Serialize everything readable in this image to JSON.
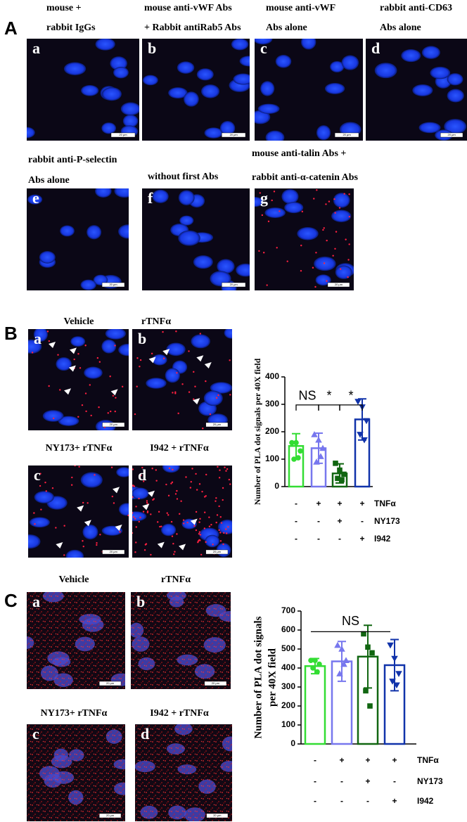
{
  "scale_bar": "20 μm",
  "panel_a": {
    "label": "A",
    "images": [
      {
        "letter": "a",
        "caption": [
          "mouse +",
          "rabbit IgGs"
        ]
      },
      {
        "letter": "b",
        "caption": [
          "mouse anti-vWF Abs",
          "+ Rabbit antiRab5 Abs"
        ]
      },
      {
        "letter": "c",
        "caption": [
          "mouse anti-vWF",
          "Abs alone"
        ]
      },
      {
        "letter": "d",
        "caption": [
          "rabbit anti-CD63",
          "Abs alone"
        ]
      },
      {
        "letter": "e",
        "caption": [
          "rabbit anti-P-selectin",
          "Abs alone"
        ]
      },
      {
        "letter": "f",
        "caption": [
          "without first Abs"
        ]
      },
      {
        "letter": "g",
        "caption": [
          "mouse anti-talin Abs +",
          "rabbit anti-α-catenin Abs"
        ]
      }
    ]
  },
  "panel_b": {
    "label": "B",
    "images": [
      {
        "letter": "a",
        "caption": [
          "Vehicle"
        ]
      },
      {
        "letter": "b",
        "caption": [
          "rTNFα"
        ]
      },
      {
        "letter": "c",
        "caption": [
          "NY173+ rTNFα"
        ]
      },
      {
        "letter": "d",
        "caption": [
          "I942 + rTNFα"
        ]
      }
    ],
    "chart": {
      "type": "bar",
      "y_label": [
        "Number of PLA dot signals per 40X field"
      ],
      "values": [
        148,
        140,
        48,
        245
      ],
      "errors": [
        45,
        55,
        35,
        75
      ],
      "colors": [
        "#33dd33",
        "#7777ee",
        "#116611",
        "#1133aa"
      ],
      "points": [
        [
          160,
          160,
          130,
          100,
          105
        ],
        [
          190,
          170,
          140,
          90,
          110
        ],
        [
          85,
          60,
          45,
          30,
          25
        ],
        [
          310,
          290,
          240,
          190,
          170
        ]
      ],
      "ylim": [
        0,
        400
      ],
      "yticks": [
        0,
        100,
        200,
        300,
        400
      ],
      "annotations": [
        "NS",
        "*",
        "*"
      ],
      "conditions": [
        {
          "name": "TNFα",
          "signs": [
            "-",
            "+",
            "+",
            "+"
          ]
        },
        {
          "name": "NY173",
          "signs": [
            "-",
            "-",
            "+",
            "-"
          ]
        },
        {
          "name": "I942",
          "signs": [
            "-",
            "-",
            "-",
            "+"
          ]
        }
      ]
    }
  },
  "panel_c": {
    "label": "C",
    "images": [
      {
        "letter": "a",
        "caption": [
          "Vehicle"
        ]
      },
      {
        "letter": "b",
        "caption": [
          "rTNFα"
        ]
      },
      {
        "letter": "c",
        "caption": [
          "NY173+ rTNFα"
        ]
      },
      {
        "letter": "d",
        "caption": [
          "I942 + rTNFα"
        ]
      }
    ],
    "chart": {
      "type": "bar",
      "y_label": [
        "Number of PLA dot signals",
        "per 40X field"
      ],
      "values": [
        410,
        435,
        460,
        415
      ],
      "errors": [
        40,
        105,
        165,
        135
      ],
      "colors": [
        "#33dd33",
        "#7777ee",
        "#116611",
        "#1133aa"
      ],
      "points": [
        [
          440,
          440,
          420,
          400,
          380
        ],
        [
          520,
          500,
          440,
          370,
          420
        ],
        [
          580,
          510,
          480,
          280,
          200
        ],
        [
          520,
          450,
          370,
          330,
          310
        ]
      ],
      "ylim": [
        0,
        700
      ],
      "yticks": [
        0,
        100,
        200,
        300,
        400,
        500,
        600,
        700
      ],
      "annotations": [
        "NS"
      ],
      "conditions": [
        {
          "name": "TNFα",
          "signs": [
            "-",
            "+",
            "+",
            "+"
          ]
        },
        {
          "name": "NY173",
          "signs": [
            "-",
            "-",
            "+",
            "-"
          ]
        },
        {
          "name": "I942",
          "signs": [
            "-",
            "-",
            "-",
            "+"
          ]
        }
      ]
    }
  }
}
